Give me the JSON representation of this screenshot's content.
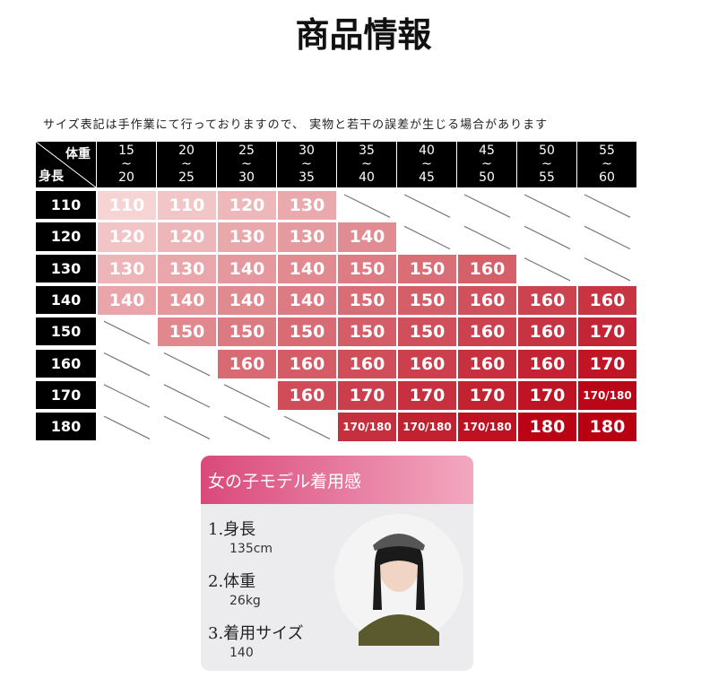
{
  "header": {
    "title": "商品情報",
    "note": "サイズ表記は手作業にて行っておりますので、 実物と若干の誤差が生じる場合があります"
  },
  "table": {
    "corner": {
      "top": "体重",
      "bottom": "身長"
    },
    "columns": [
      [
        "15",
        "~",
        "20"
      ],
      [
        "20",
        "~",
        "25"
      ],
      [
        "25",
        "~",
        "30"
      ],
      [
        "30",
        "~",
        "35"
      ],
      [
        "35",
        "~",
        "40"
      ],
      [
        "40",
        "~",
        "45"
      ],
      [
        "45",
        "~",
        "50"
      ],
      [
        "50",
        "~",
        "55"
      ],
      [
        "55",
        "~",
        "60"
      ]
    ],
    "rows": [
      {
        "height": "110",
        "cells": [
          "110",
          "110",
          "120",
          "130",
          null,
          null,
          null,
          null,
          null
        ]
      },
      {
        "height": "120",
        "cells": [
          "120",
          "120",
          "130",
          "130",
          "140",
          null,
          null,
          null,
          null
        ]
      },
      {
        "height": "130",
        "cells": [
          "130",
          "130",
          "140",
          "140",
          "150",
          "150",
          "160",
          null,
          null
        ]
      },
      {
        "height": "140",
        "cells": [
          "140",
          "140",
          "140",
          "140",
          "150",
          "150",
          "160",
          "160",
          "160"
        ]
      },
      {
        "height": "150",
        "cells": [
          null,
          "150",
          "150",
          "150",
          "150",
          "150",
          "160",
          "160",
          "170"
        ]
      },
      {
        "height": "160",
        "cells": [
          null,
          null,
          "160",
          "160",
          "160",
          "160",
          "160",
          "160",
          "170"
        ]
      },
      {
        "height": "170",
        "cells": [
          null,
          null,
          null,
          "160",
          "170",
          "170",
          "170",
          "170",
          "170/180"
        ]
      },
      {
        "height": "180",
        "cells": [
          null,
          null,
          null,
          null,
          "170/180",
          "170/180",
          "170/180",
          "180",
          "180"
        ]
      }
    ]
  },
  "model": {
    "title": "女の子モデル着用感",
    "items": [
      {
        "label": "1.身長",
        "value": "135cm"
      },
      {
        "label": "2.体重",
        "value": "26kg"
      },
      {
        "label": "3.着用サイズ",
        "value": "140"
      }
    ]
  }
}
